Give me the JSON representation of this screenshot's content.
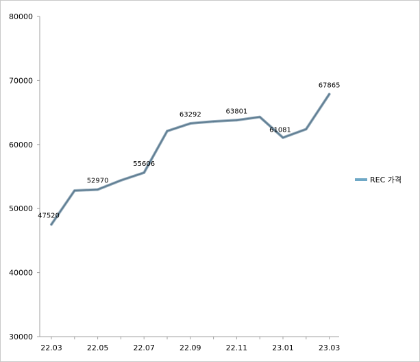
{
  "chart_data": {
    "type": "line",
    "x": [
      "22.03",
      "22.04",
      "22.05",
      "22.06",
      "22.07",
      "22.08",
      "22.09",
      "22.10",
      "22.11",
      "22.12",
      "23.01",
      "23.02",
      "23.03"
    ],
    "x_tick_labels": [
      "22.03",
      "22.05",
      "22.07",
      "22.09",
      "22.11",
      "23.01",
      "23.03"
    ],
    "series": [
      {
        "name": "REC 가격",
        "color": "#5f7d92",
        "values": [
          47520,
          52800,
          52970,
          54400,
          55606,
          62100,
          63292,
          63600,
          63801,
          64300,
          61081,
          62400,
          67865
        ]
      }
    ],
    "data_labels": [
      {
        "index": 0,
        "text": "47520"
      },
      {
        "index": 2,
        "text": "52970"
      },
      {
        "index": 4,
        "text": "55606"
      },
      {
        "index": 6,
        "text": "63292"
      },
      {
        "index": 8,
        "text": "63801"
      },
      {
        "index": 10,
        "text": "61081"
      },
      {
        "index": 12,
        "text": "67865"
      }
    ],
    "ylim": [
      30000,
      80000
    ],
    "y_ticks": [
      "30000",
      "40000",
      "50000",
      "60000",
      "70000",
      "80000"
    ],
    "legend_position": "right",
    "legend_swatch_color": "#6fa8c6",
    "grid": false
  }
}
